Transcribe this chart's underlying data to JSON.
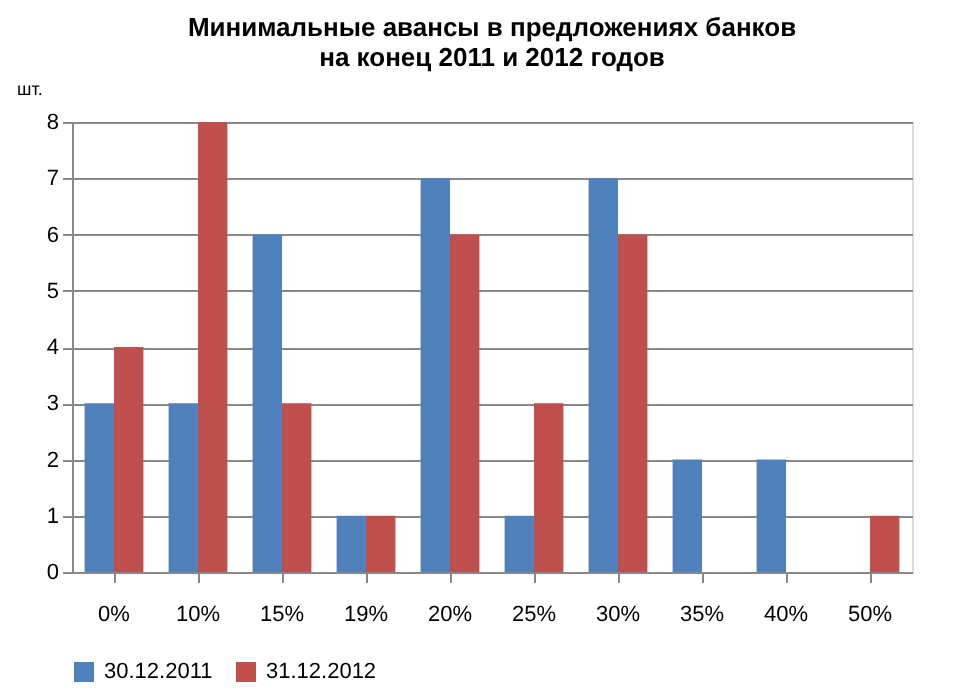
{
  "chart_data": {
    "type": "bar",
    "title": "Минимальные авансы в предложениях банков\nна конец 2011  и 2012  годов",
    "ylabel": "шт.",
    "categories": [
      "0%",
      "10%",
      "15%",
      "19%",
      "20%",
      "25%",
      "30%",
      "35%",
      "40%",
      "50%"
    ],
    "series": [
      {
        "name": "30.12.2011",
        "color": "#4f81bd",
        "values": [
          3,
          3,
          6,
          1,
          7,
          1,
          7,
          2,
          2,
          0
        ]
      },
      {
        "name": "31.12.2012",
        "color": "#c0504d",
        "values": [
          4,
          8,
          3,
          1,
          6,
          3,
          6,
          0,
          0,
          1
        ]
      }
    ],
    "ylim": [
      0,
      8
    ],
    "yticks": [
      0,
      1,
      2,
      3,
      4,
      5,
      6,
      7,
      8
    ],
    "grid": "y",
    "legend": "bottom"
  }
}
